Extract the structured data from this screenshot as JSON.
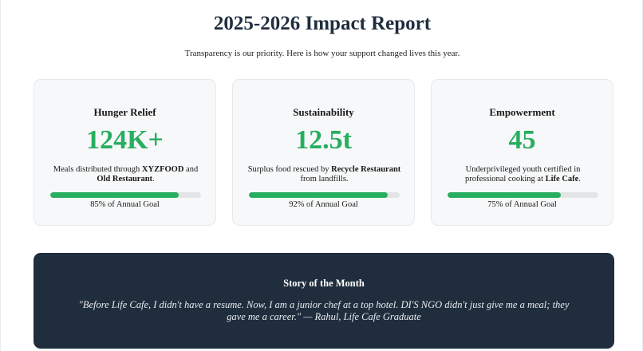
{
  "header": {
    "title": "2025-2026 Impact Report",
    "subtitle": "Transparency is our priority. Here is how your support changed lives this year."
  },
  "colors": {
    "accent": "#27ae60",
    "dark_panel": "#1f2d3d",
    "card_bg": "#f7f8f9",
    "track": "#e2e4e6"
  },
  "cards": [
    {
      "title": "Hunger Relief",
      "stat": "124K+",
      "desc_pre": "Meals distributed through ",
      "desc_b1": "XYZFOOD",
      "desc_mid": " and ",
      "desc_b2": "Old Restaurant",
      "desc_post": ".",
      "progress_percent": 85,
      "progress_label": "85% of Annual Goal"
    },
    {
      "title": "Sustainability",
      "stat": "12.5t",
      "desc_pre": "Surplus food rescued by ",
      "desc_b1": "Recycle Restaurant",
      "desc_mid": " from landfills.",
      "desc_b2": "",
      "desc_post": "",
      "progress_percent": 92,
      "progress_label": "92% of Annual Goal"
    },
    {
      "title": "Empowerment",
      "stat": "45",
      "desc_pre": "Underprivileged youth certified in professional cooking at ",
      "desc_b1": "Life Cafe",
      "desc_mid": ".",
      "desc_b2": "",
      "desc_post": "",
      "progress_percent": 75,
      "progress_label": "75% of Annual Goal"
    }
  ],
  "story": {
    "heading": "Story of the Month",
    "quote": "\"Before Life Cafe, I didn't have a resume. Now, I am a junior chef at a top hotel. DI'S NGO didn't just give me a meal; they gave me a career.\" — Rahul, Life Cafe Graduate"
  }
}
